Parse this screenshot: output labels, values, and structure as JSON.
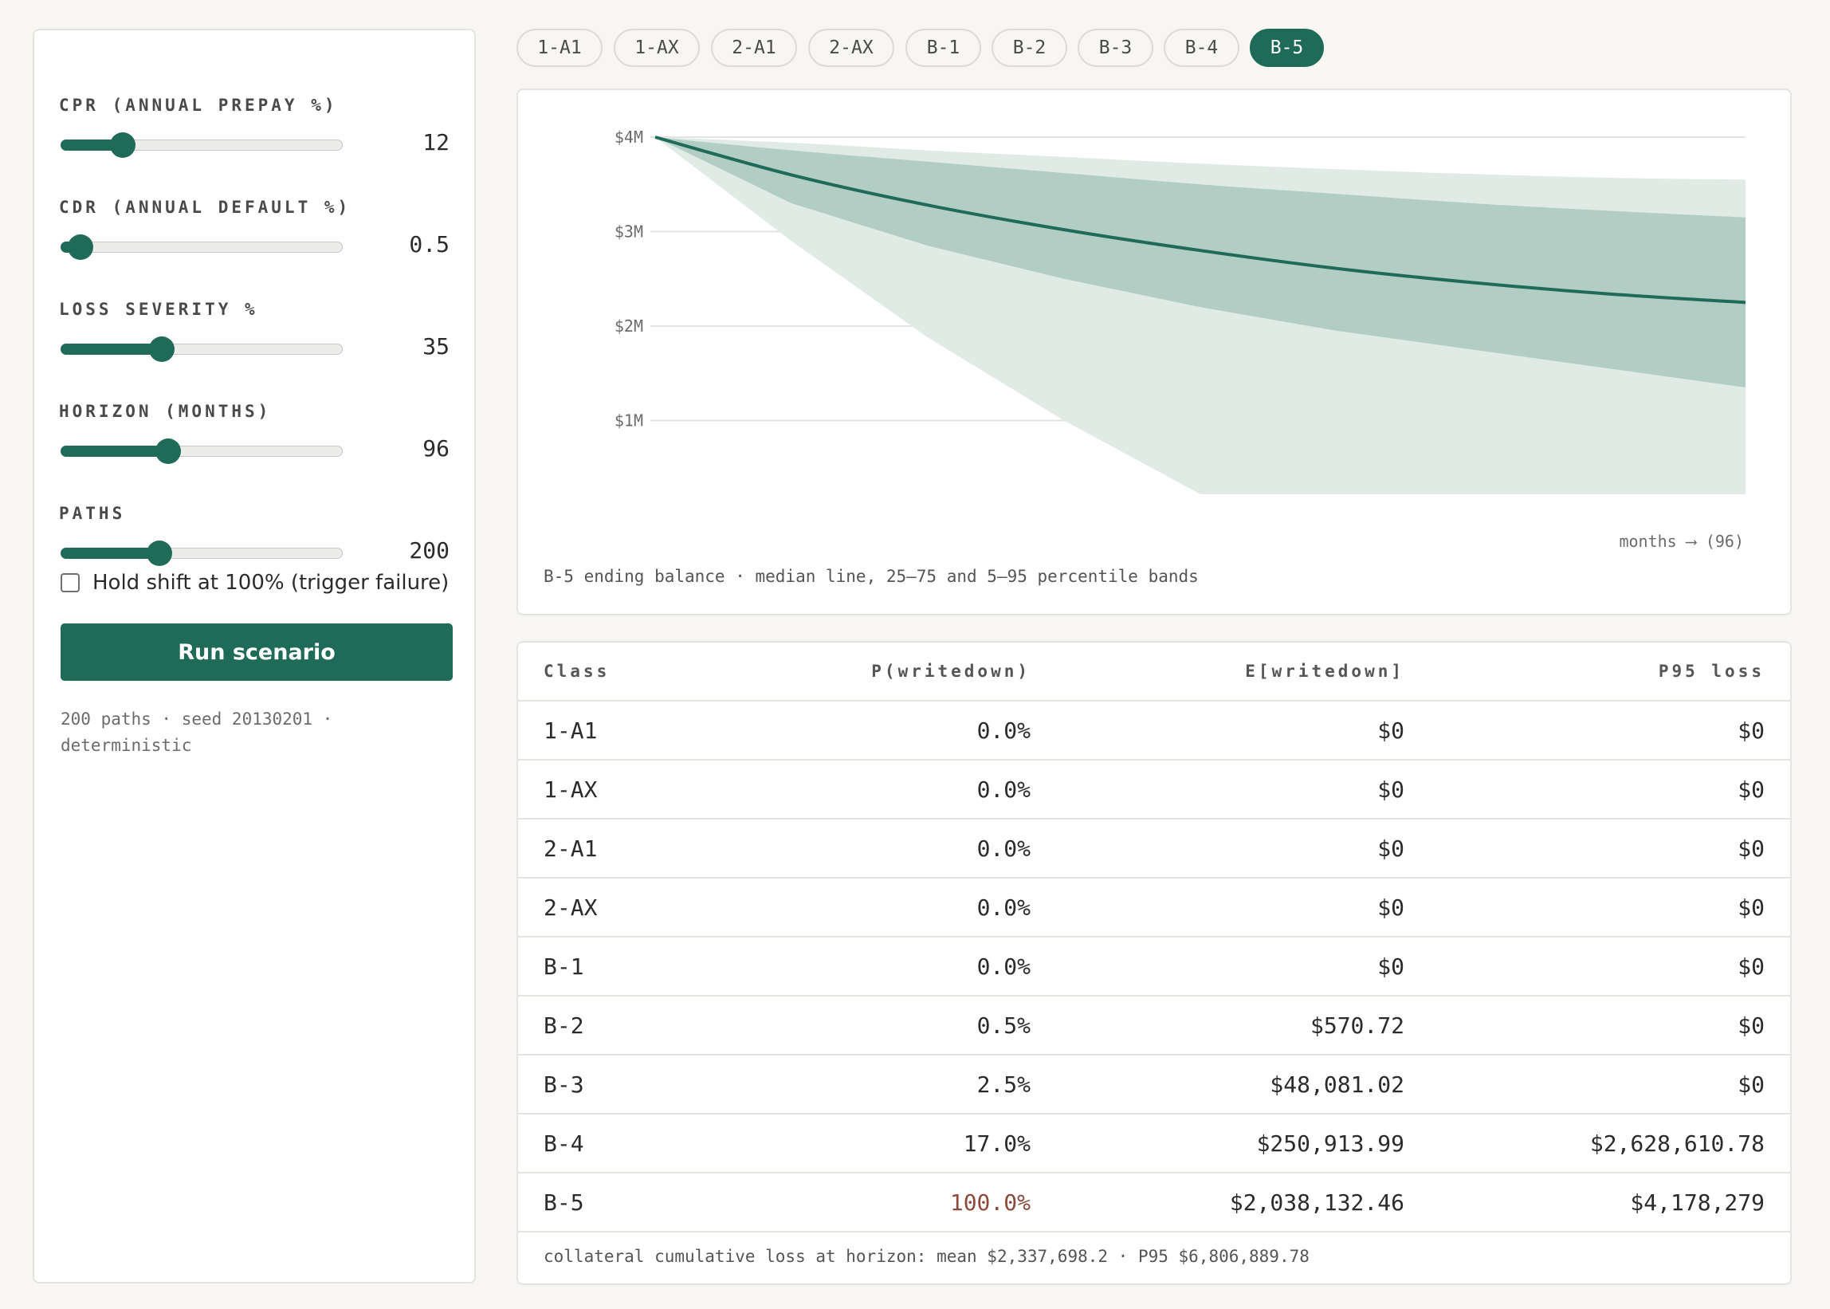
{
  "controls": [
    {
      "label": "CPR (annual prepay %)",
      "value": "12",
      "fraction": 0.22
    },
    {
      "label": "CDR (annual default %)",
      "value": "0.5",
      "fraction": 0.07
    },
    {
      "label": "Loss severity %",
      "value": "35",
      "fraction": 0.36
    },
    {
      "label": "Horizon (months)",
      "value": "96",
      "fraction": 0.38
    },
    {
      "label": "Paths",
      "value": "200",
      "fraction": 0.35
    }
  ],
  "checkbox": {
    "label": "Hold shift at 100% (trigger failure)",
    "checked": false
  },
  "run_button": {
    "label": "Run scenario"
  },
  "meta": {
    "line1": "200 paths · seed 20130201 ·",
    "line2": "deterministic"
  },
  "tabs": [
    {
      "label": "1-A1",
      "active": false
    },
    {
      "label": "1-AX",
      "active": false
    },
    {
      "label": "2-A1",
      "active": false
    },
    {
      "label": "2-AX",
      "active": false
    },
    {
      "label": "B-1",
      "active": false
    },
    {
      "label": "B-2",
      "active": false
    },
    {
      "label": "B-3",
      "active": false
    },
    {
      "label": "B-4",
      "active": false
    },
    {
      "label": "B-5",
      "active": true
    }
  ],
  "chart_data": {
    "type": "area",
    "title": "",
    "caption": "B-5 ending balance · median line, 25–75 and 5–95 percentile bands",
    "xlabel": "months ⟶ (96)",
    "ylabel": "",
    "y_ticks": [
      "$4M",
      "$3M",
      "$2M",
      "$1M"
    ],
    "y_tick_values": [
      4,
      3,
      2,
      1
    ],
    "ylim": [
      0,
      4.0
    ],
    "xlim": [
      0,
      96
    ],
    "x": [
      0,
      12,
      24,
      36,
      48,
      60,
      72,
      84,
      96
    ],
    "series": [
      {
        "role": "median",
        "values": [
          4.0,
          3.6,
          3.28,
          3.02,
          2.8,
          2.61,
          2.46,
          2.34,
          2.25
        ]
      },
      {
        "role": "p25",
        "values": [
          4.0,
          3.3,
          2.85,
          2.5,
          2.2,
          1.95,
          1.75,
          1.55,
          1.35
        ]
      },
      {
        "role": "p75",
        "values": [
          4.0,
          3.86,
          3.74,
          3.62,
          3.5,
          3.4,
          3.3,
          3.22,
          3.15
        ]
      },
      {
        "role": "p5",
        "values": [
          4.0,
          2.9,
          1.88,
          1.0,
          0.22,
          0.22,
          0.22,
          0.22,
          0.22
        ]
      },
      {
        "role": "p95",
        "values": [
          4.0,
          3.94,
          3.86,
          3.79,
          3.72,
          3.66,
          3.61,
          3.57,
          3.55
        ]
      }
    ],
    "colors": {
      "median": "#1f6b58",
      "inner_band": "#b2cec4",
      "outer_band": "#e0ebe6"
    }
  },
  "table": {
    "headers": [
      "Class",
      "P(writedown)",
      "E[writedown]",
      "P95 loss"
    ],
    "rows": [
      {
        "cls": "1-A1",
        "p": "0.0%",
        "e": "$0",
        "p95": "$0"
      },
      {
        "cls": "1-AX",
        "p": "0.0%",
        "e": "$0",
        "p95": "$0"
      },
      {
        "cls": "2-A1",
        "p": "0.0%",
        "e": "$0",
        "p95": "$0"
      },
      {
        "cls": "2-AX",
        "p": "0.0%",
        "e": "$0",
        "p95": "$0"
      },
      {
        "cls": "B-1",
        "p": "0.0%",
        "e": "$0",
        "p95": "$0"
      },
      {
        "cls": "B-2",
        "p": "0.5%",
        "e": "$570.72",
        "p95": "$0"
      },
      {
        "cls": "B-3",
        "p": "2.5%",
        "e": "$48,081.02",
        "p95": "$0"
      },
      {
        "cls": "B-4",
        "p": "17.0%",
        "e": "$250,913.99",
        "p95": "$2,628,610.78"
      },
      {
        "cls": "B-5",
        "p": "100.0%",
        "e": "$2,038,132.46",
        "p95": "$4,178,279",
        "alert": true
      }
    ],
    "footer": "collateral cumulative loss at horizon: mean $2,337,698.2 · P95 $6,806,889.78"
  }
}
